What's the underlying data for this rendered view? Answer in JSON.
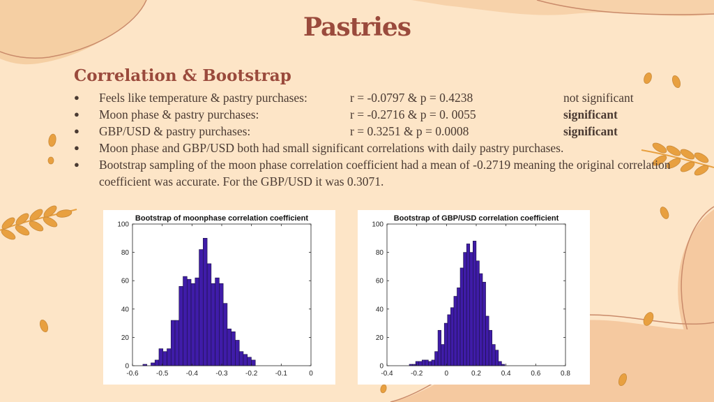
{
  "slide": {
    "title": "Pastries",
    "subtitle": "Correlation & Bootstrap"
  },
  "bullets": [
    {
      "label": "Feels like temperature & pastry purchases:",
      "stat": "r = -0.0797 & p = 0.4238",
      "result": "not significant",
      "bold": false
    },
    {
      "label": "Moon phase & pastry purchases:",
      "stat": "r = -0.2716 & p = 0. 0055",
      "result": "significant",
      "bold": true
    },
    {
      "label": "GBP/USD & pastry purchases:",
      "stat": "r = 0.3251 & p = 0.0008",
      "result": "significant",
      "bold": true
    }
  ],
  "notes": [
    "Moon phase and GBP/USD both had small significant correlations with daily pastry purchases.",
    "Bootstrap sampling of the moon phase correlation coefficient had a mean of -0.2719 meaning the original correlation coefficient was accurate. For the GBP/USD it was 0.3071."
  ],
  "colors": {
    "background": "#fde5c7",
    "title": "#9a4a3c",
    "bar_fill": "#3f1ca8",
    "bar_edge": "#1a1040",
    "wheat": "#e8a040"
  },
  "chart_data": [
    {
      "type": "bar",
      "title": "Bootstrap of moonphase correlation coefficient",
      "xlim": [
        -0.6,
        0
      ],
      "ylim": [
        0,
        100
      ],
      "xticks": [
        "-0.6",
        "-0.5",
        "-0.4",
        "-0.3",
        "-0.2",
        "-0.1",
        "0"
      ],
      "yticks": [
        "0",
        "20",
        "40",
        "60",
        "80",
        "100"
      ],
      "bin_width": 0.0135,
      "bin_start": -0.565,
      "values": [
        1,
        0,
        2,
        4,
        12,
        10,
        12,
        32,
        32,
        56,
        63,
        61,
        58,
        62,
        82,
        90,
        72,
        58,
        62,
        58,
        44,
        26,
        24,
        18,
        10,
        8,
        6,
        4
      ]
    },
    {
      "type": "bar",
      "title": "Bootstrap of GBP/USD correlation coefficient",
      "xlim": [
        -0.4,
        0.8
      ],
      "ylim": [
        0,
        100
      ],
      "xticks": [
        "-0.4",
        "-0.2",
        "0",
        "0.2",
        "0.4",
        "0.6",
        "0.8"
      ],
      "yticks": [
        "0",
        "20",
        "40",
        "60",
        "80",
        "100"
      ],
      "bin_width": 0.0214,
      "bin_start": -0.25,
      "values": [
        1,
        1,
        3,
        3,
        4,
        4,
        3,
        4,
        10,
        25,
        15,
        30,
        36,
        41,
        49,
        55,
        69,
        80,
        86,
        80,
        88,
        74,
        65,
        59,
        35,
        25,
        15,
        11,
        3,
        1
      ]
    }
  ]
}
